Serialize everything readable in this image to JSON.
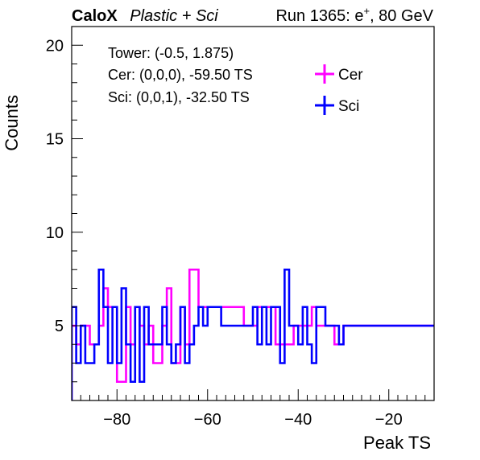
{
  "chart_data": {
    "type": "step",
    "header": {
      "experiment": "CaloX",
      "materials": "Plastic + Sci",
      "run_prefix": "Run 1365: e",
      "run_sup": "+",
      "run_suffix": ", 80 GeV"
    },
    "xlabel": "Peak TS",
    "ylabel": "Counts",
    "xlim": [
      -90,
      -10
    ],
    "ylim": [
      1,
      21
    ],
    "x_ticks": [
      -80,
      -60,
      -40,
      -20
    ],
    "x_tick_labels": [
      "−80",
      "−60",
      "−40",
      "−20"
    ],
    "y_ticks": [
      5,
      10,
      15,
      20
    ],
    "y_tick_labels": [
      "5",
      "10",
      "15",
      "20"
    ],
    "bin_width": 1,
    "info_lines": [
      "Tower: (-0.5, 1.875)",
      "Cer: (0,0,0), -59.50 TS",
      "Sci: (0,0,1), -32.50 TS"
    ],
    "legend_position": "top-right",
    "series": [
      {
        "name": "Cer",
        "color": "#ff00ff",
        "bin_edges_start": -90,
        "values": [
          5,
          4,
          5,
          5,
          4,
          4,
          5,
          7,
          6,
          6,
          2,
          2,
          6,
          4,
          6,
          5,
          4,
          5,
          3,
          3,
          5,
          7,
          3,
          3,
          6,
          4,
          8,
          8,
          6,
          6,
          6,
          6,
          6,
          6,
          6,
          6,
          6,
          6,
          5,
          5,
          5,
          6,
          6,
          6,
          6,
          4,
          4,
          4,
          4,
          5,
          5,
          5,
          5,
          6,
          5,
          5,
          5,
          5,
          4,
          4,
          5,
          5,
          5,
          5,
          5,
          5,
          5,
          5,
          5,
          5,
          5,
          5,
          5,
          5,
          5,
          5,
          5,
          5,
          5,
          5
        ]
      },
      {
        "name": "Sci",
        "color": "#0000ff",
        "bin_edges_start": -90,
        "values": [
          6,
          3,
          5,
          3,
          3,
          4,
          8,
          6,
          3,
          6,
          3,
          7,
          4,
          2,
          6,
          2,
          6,
          4,
          4,
          4,
          6,
          4,
          3,
          4,
          6,
          3,
          4,
          5,
          6,
          5,
          6,
          6,
          6,
          5,
          5,
          5,
          5,
          5,
          5,
          5,
          6,
          4,
          6,
          4,
          6,
          6,
          3,
          8,
          5,
          5,
          4,
          6,
          4,
          3,
          6,
          6,
          5,
          5,
          5,
          4,
          5,
          5,
          5,
          5,
          5,
          5,
          5,
          5,
          5,
          5,
          5,
          5,
          5,
          5,
          5,
          5,
          5,
          5,
          5,
          5
        ]
      }
    ]
  }
}
